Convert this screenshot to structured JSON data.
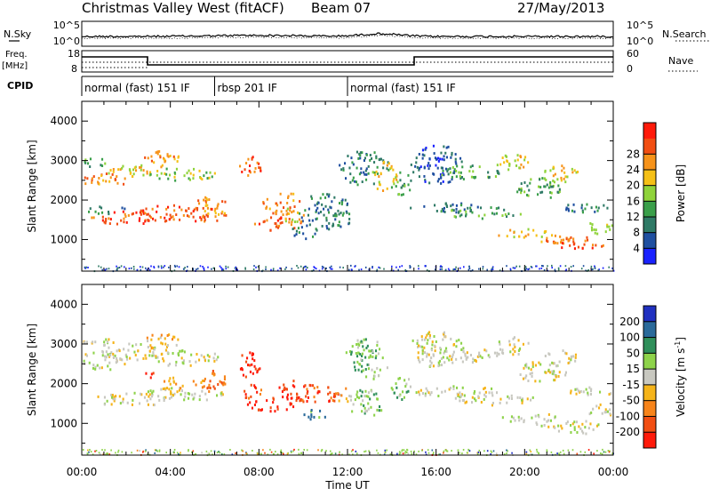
{
  "header": {
    "station": "Christmas Valley West (fitACF)",
    "beam": "Beam 07",
    "date": "27/May/2013"
  },
  "top_panels": {
    "noise": {
      "left_label": "N.Sky",
      "right_label": "N.Search",
      "left_ticks": [
        "10^5",
        "10^0"
      ],
      "right_ticks": [
        "10^5",
        "10^0"
      ]
    },
    "freq": {
      "left_label_1": "Freq.",
      "left_label_2": "[MHz]",
      "right_label": "Nave",
      "left_ticks": [
        "18",
        "8"
      ],
      "right_ticks": [
        "60",
        "0"
      ]
    },
    "cpid": {
      "label": "CPID",
      "segments": [
        {
          "label": "normal (fast) 151 IF",
          "start_hour": 0,
          "end_hour": 6
        },
        {
          "label": "rbsp 201 IF",
          "start_hour": 6,
          "end_hour": 12
        },
        {
          "label": "normal (fast) 151 IF",
          "start_hour": 12,
          "end_hour": 24
        }
      ]
    }
  },
  "chart_data": [
    {
      "type": "heatmap",
      "name": "power",
      "ylabel": "Slant Range [km]",
      "xlim": [
        0,
        24
      ],
      "ylim": [
        200,
        4500
      ],
      "yticks": [
        1000,
        2000,
        3000,
        4000
      ],
      "colorbar": {
        "label": "Power [dB]",
        "ticks": [
          "4",
          "8",
          "12",
          "16",
          "20",
          "24",
          "28"
        ],
        "colors": [
          "#1a22ff",
          "#1f4fa0",
          "#2f7a66",
          "#3a9f4a",
          "#8fd33a",
          "#f5c016",
          "#f7931a",
          "#f24e12",
          "#ff1a0a"
        ]
      }
    },
    {
      "type": "heatmap",
      "name": "velocity",
      "ylabel": "Slant Range [km]",
      "xlabel": "Time UT",
      "xlim": [
        0,
        24
      ],
      "ylim": [
        200,
        4500
      ],
      "yticks": [
        1000,
        2000,
        3000,
        4000
      ],
      "xticks": [
        "00:00",
        "04:00",
        "08:00",
        "12:00",
        "16:00",
        "20:00",
        "00:00"
      ],
      "colorbar": {
        "label": "Velocity [m s",
        "label_sup": "-1",
        "label_end": "]",
        "ticks": [
          "200",
          "100",
          "50",
          "15",
          "-15",
          "-50",
          "-100",
          "-200"
        ],
        "colors": [
          "#2030c0",
          "#2a6a9a",
          "#2f8f5a",
          "#8ed34a",
          "#c8c8c0",
          "#f5b41a",
          "#f7841a",
          "#f24e12",
          "#ff1a0a"
        ]
      }
    }
  ]
}
